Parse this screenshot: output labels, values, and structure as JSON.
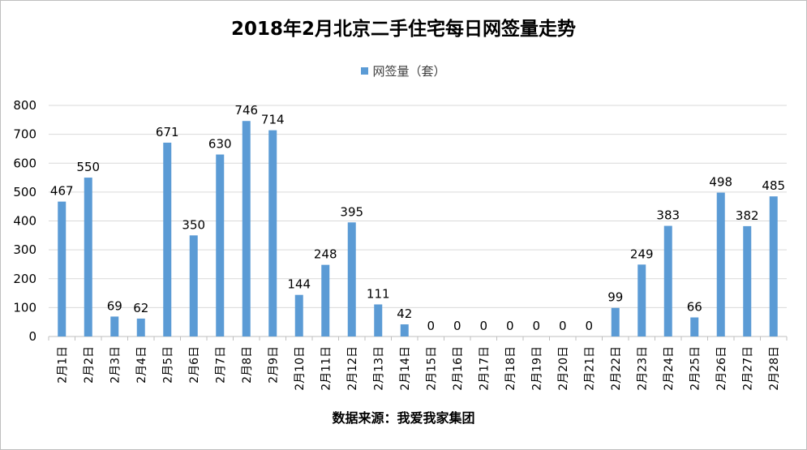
{
  "chart_data": {
    "type": "bar",
    "title": "2018年2月北京二手住宅每日网签量走势",
    "legend": {
      "entries": [
        "网签量（套）"
      ],
      "position": "top"
    },
    "series": [
      {
        "name": "网签量（套）",
        "color": "#5b9bd5",
        "values": [
          467,
          550,
          69,
          62,
          671,
          350,
          630,
          746,
          714,
          144,
          248,
          395,
          111,
          42,
          0,
          0,
          0,
          0,
          0,
          0,
          0,
          99,
          249,
          383,
          66,
          498,
          382,
          485
        ]
      }
    ],
    "categories": [
      "2月1日",
      "2月2日",
      "2月3日",
      "2月4日",
      "2月5日",
      "2月6日",
      "2月7日",
      "2月8日",
      "2月9日",
      "2月10日",
      "2月11日",
      "2月12日",
      "2月13日",
      "2月14日",
      "2月15日",
      "2月16日",
      "2月17日",
      "2月18日",
      "2月19日",
      "2月20日",
      "2月21日",
      "2月22日",
      "2月23日",
      "2月24日",
      "2月25日",
      "2月26日",
      "2月27日",
      "2月28日"
    ],
    "ylim": [
      0,
      800
    ],
    "yticks": [
      0,
      100,
      200,
      300,
      400,
      500,
      600,
      700,
      800
    ],
    "grid": true,
    "data_labels": true,
    "source": "数据来源：我爱我家集团"
  }
}
